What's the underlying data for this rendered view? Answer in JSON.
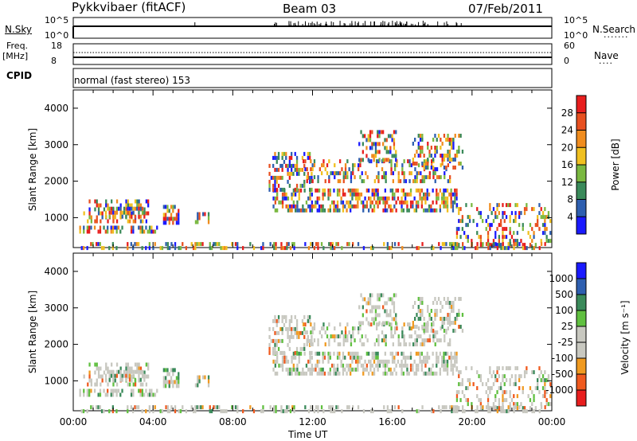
{
  "header": {
    "station": "Pykkvibaer (fitACF)",
    "beam": "Beam 03",
    "date": "07/Feb/2011"
  },
  "nsky_panel": {
    "left_label": "N.Sky",
    "right_label": "N.Search",
    "left_ticks": [
      "10^5",
      "10^0"
    ],
    "right_ticks": [
      "10^5",
      "10^0"
    ]
  },
  "freq_panel": {
    "left_label_1": "Freq.",
    "left_label_2": "[MHz]",
    "right_label": "Nave",
    "left_ticks": [
      "18",
      "8"
    ],
    "right_ticks": [
      "60",
      "0"
    ]
  },
  "cpid": {
    "label": "CPID",
    "value": "normal (fast stereo) 153"
  },
  "colors": {
    "power": [
      "#1a1aff",
      "#2e5fb0",
      "#3a8a5a",
      "#7ab840",
      "#f0c020",
      "#f08c1e",
      "#e85020",
      "#e81e1e"
    ],
    "velocity": [
      "#e81e1e",
      "#f05a1e",
      "#f09a20",
      "#c8c8c0",
      "#c8c8c0",
      "#60c040",
      "#3a8a5a",
      "#2e5fb0",
      "#1a1aff"
    ]
  },
  "chart_data": [
    {
      "type": "heatmap",
      "ylabel": "Slant Range [km]",
      "xlim": [
        0,
        24
      ],
      "ylim": [
        180,
        4500
      ],
      "yticks": [
        "1000",
        "2000",
        "3000",
        "4000"
      ],
      "colorbar_label": "Power [dB]",
      "colorbar_ticks": [
        "4",
        "8",
        "12",
        "16",
        "20",
        "24",
        "28"
      ],
      "colorbar_range": [
        0,
        32
      ]
    },
    {
      "type": "heatmap",
      "ylabel": "Slant Range [km]",
      "xlabel": "Time UT",
      "xlim": [
        0,
        24
      ],
      "ylim": [
        180,
        4500
      ],
      "yticks": [
        "1000",
        "2000",
        "3000",
        "4000"
      ],
      "xticks": [
        "00:00",
        "04:00",
        "08:00",
        "12:00",
        "16:00",
        "20:00",
        "00:00"
      ],
      "colorbar_label": "Velocity [m s⁻¹]",
      "colorbar_ticks": [
        "1000",
        "500",
        "100",
        "25",
        "-25",
        "-100",
        "-500",
        "-1000"
      ]
    }
  ]
}
